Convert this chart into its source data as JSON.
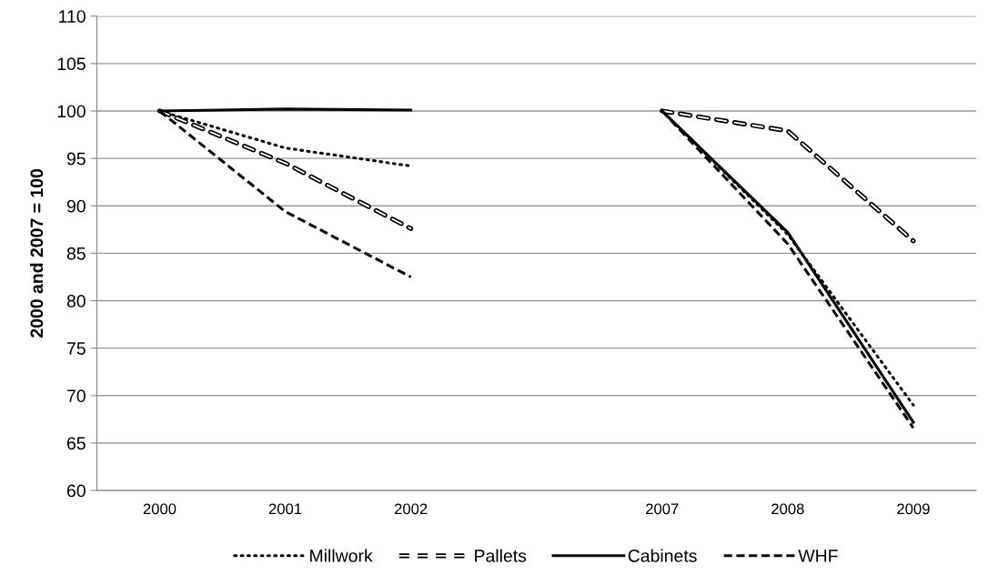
{
  "chart_data": {
    "type": "line",
    "ylabel": "2000 and 2007 = 100",
    "categories": [
      "2000",
      "2001",
      "2002",
      null,
      "2007",
      "2008",
      "2009"
    ],
    "ylim": [
      60,
      110
    ],
    "yticks": [
      60,
      65,
      70,
      75,
      80,
      85,
      90,
      95,
      100,
      105,
      110
    ],
    "grid": "y",
    "legend": "bottom",
    "marker": "none",
    "series": [
      {
        "name": "Millwork",
        "color": "#000000",
        "line_style": "dotted",
        "values": [
          100,
          96.1,
          94.2,
          null,
          100,
          87.0,
          69.0
        ]
      },
      {
        "name": "Pallets",
        "color": "#000000",
        "line_style": "hollow dashed",
        "values": [
          100,
          94.5,
          87.6,
          null,
          100,
          97.9,
          86.3
        ]
      },
      {
        "name": "Cabinets",
        "color": "#050505",
        "line_style": "solid",
        "values": [
          100,
          100.2,
          100.1,
          null,
          100,
          87.2,
          67.2
        ]
      },
      {
        "name": "WHF",
        "color": "#0a0a0a",
        "line_style": "dashed",
        "values": [
          100,
          89.4,
          82.5,
          null,
          100,
          86.0,
          66.6
        ]
      }
    ]
  }
}
